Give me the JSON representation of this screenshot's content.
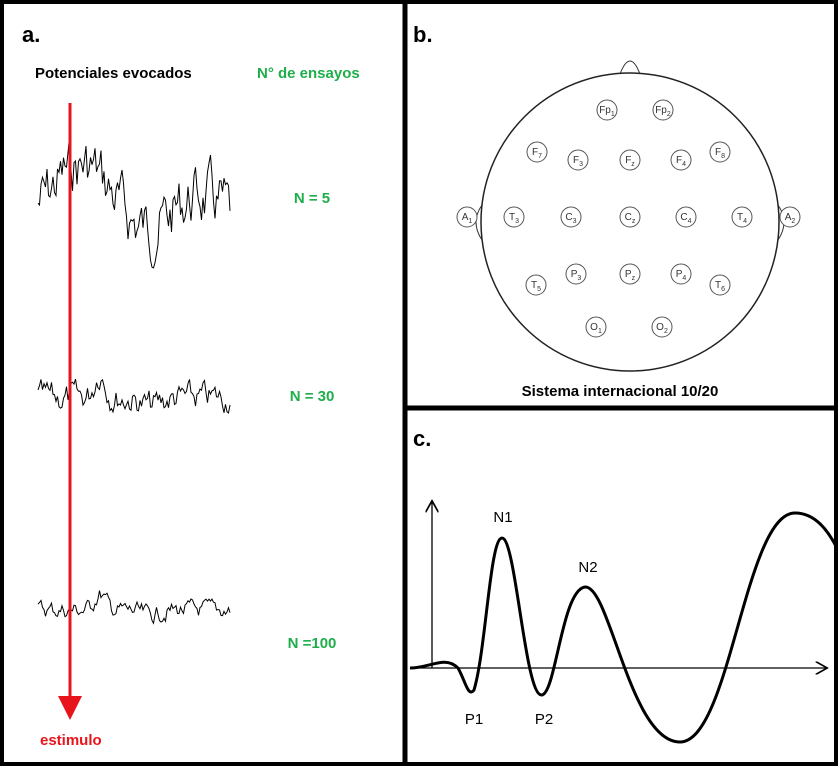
{
  "panel_a": {
    "label": "a.",
    "heading_left": "Potenciales evocados",
    "heading_right": "N° de ensayos",
    "traces": [
      "N = 5",
      "N = 30",
      "N =100"
    ],
    "stimulus": "estimulo"
  },
  "panel_b": {
    "label": "b.",
    "caption": "Sistema internacional 10/20",
    "electrodes": [
      {
        "letter": "Fp",
        "index": "1"
      },
      {
        "letter": "Fp",
        "index": "2"
      },
      {
        "letter": "F",
        "index": "7"
      },
      {
        "letter": "F",
        "index": "3"
      },
      {
        "letter": "F",
        "index": "z"
      },
      {
        "letter": "F",
        "index": "4"
      },
      {
        "letter": "F",
        "index": "8"
      },
      {
        "letter": "A",
        "index": "1"
      },
      {
        "letter": "T",
        "index": "3"
      },
      {
        "letter": "C",
        "index": "3"
      },
      {
        "letter": "C",
        "index": "z"
      },
      {
        "letter": "C",
        "index": "4"
      },
      {
        "letter": "T",
        "index": "4"
      },
      {
        "letter": "A",
        "index": "2"
      },
      {
        "letter": "T",
        "index": "5"
      },
      {
        "letter": "P",
        "index": "3"
      },
      {
        "letter": "P",
        "index": "z"
      },
      {
        "letter": "P",
        "index": "4"
      },
      {
        "letter": "T",
        "index": "6"
      },
      {
        "letter": "O",
        "index": "1"
      },
      {
        "letter": "O",
        "index": "2"
      }
    ]
  },
  "panel_c": {
    "label": "c.",
    "peaks": [
      "N1",
      "N2",
      "P1",
      "P2"
    ]
  }
}
